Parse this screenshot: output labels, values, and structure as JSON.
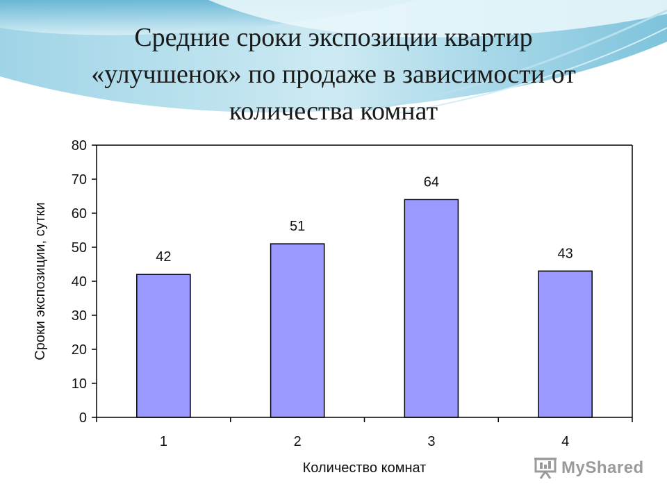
{
  "slide": {
    "title_lines": [
      "Средние сроки экспозиции квартир",
      "«улучшенок» по продаже в зависимости от",
      "количества комнат"
    ]
  },
  "chart_data": {
    "type": "bar",
    "categories": [
      "1",
      "2",
      "3",
      "4"
    ],
    "values": [
      42,
      51,
      64,
      43
    ],
    "xlabel": "Количество комнат",
    "ylabel": "Сроки экспозиции, сутки",
    "ylim": [
      0,
      80
    ],
    "yticks": [
      0,
      10,
      20,
      30,
      40,
      50,
      60,
      70,
      80
    ],
    "bar_color": "#9999ff",
    "grid": false,
    "legend": "none"
  },
  "watermark": {
    "text": "MyShared",
    "icon": "projector-screen-icon"
  }
}
